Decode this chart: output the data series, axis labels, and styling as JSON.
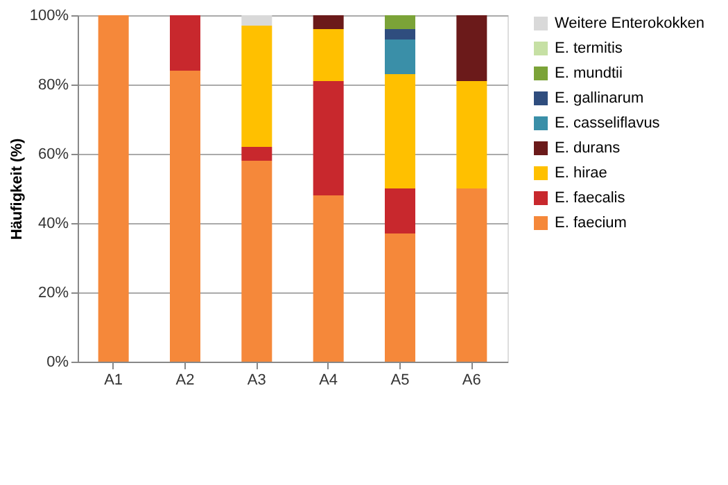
{
  "chart_data": {
    "type": "bar",
    "stacked": true,
    "ylabel": "Häufigkeit (%)",
    "categories": [
      "A1",
      "A2",
      "A3",
      "A4",
      "A5",
      "A6"
    ],
    "series": [
      {
        "name": "E. faecium",
        "color": "#f5883a",
        "values": [
          100,
          84,
          58,
          48,
          37,
          50
        ]
      },
      {
        "name": "E. faecalis",
        "color": "#c8282d",
        "values": [
          0,
          16,
          4,
          33,
          13,
          0
        ]
      },
      {
        "name": "E. hirae",
        "color": "#ffc000",
        "values": [
          0,
          0,
          35,
          15,
          33,
          31
        ]
      },
      {
        "name": "E. durans",
        "color": "#6b1a1a",
        "values": [
          0,
          0,
          0,
          4,
          0,
          19
        ]
      },
      {
        "name": "E. casseliflavus",
        "color": "#3a8fa8",
        "values": [
          0,
          0,
          0,
          0,
          10,
          0
        ]
      },
      {
        "name": "E. gallinarum",
        "color": "#2f4d7e",
        "values": [
          0,
          0,
          0,
          0,
          3,
          0
        ]
      },
      {
        "name": "E. mundtii",
        "color": "#7ba338",
        "values": [
          0,
          0,
          0,
          0,
          4,
          0
        ]
      },
      {
        "name": "E. termitis",
        "color": "#c6e0a4",
        "values": [
          0,
          0,
          0,
          0,
          0,
          0
        ]
      },
      {
        "name": "Weitere Enterokokken",
        "color": "#d9d9d9",
        "values": [
          0,
          0,
          3,
          0,
          0,
          0
        ]
      }
    ],
    "ylim": [
      0,
      100
    ],
    "yticks": [
      {
        "value": 0,
        "label": "0%"
      },
      {
        "value": 20,
        "label": "20%"
      },
      {
        "value": 40,
        "label": "40%"
      },
      {
        "value": 60,
        "label": "60%"
      },
      {
        "value": 80,
        "label": "80%"
      },
      {
        "value": 100,
        "label": "100%"
      }
    ],
    "grid": "y",
    "legend": "right"
  }
}
